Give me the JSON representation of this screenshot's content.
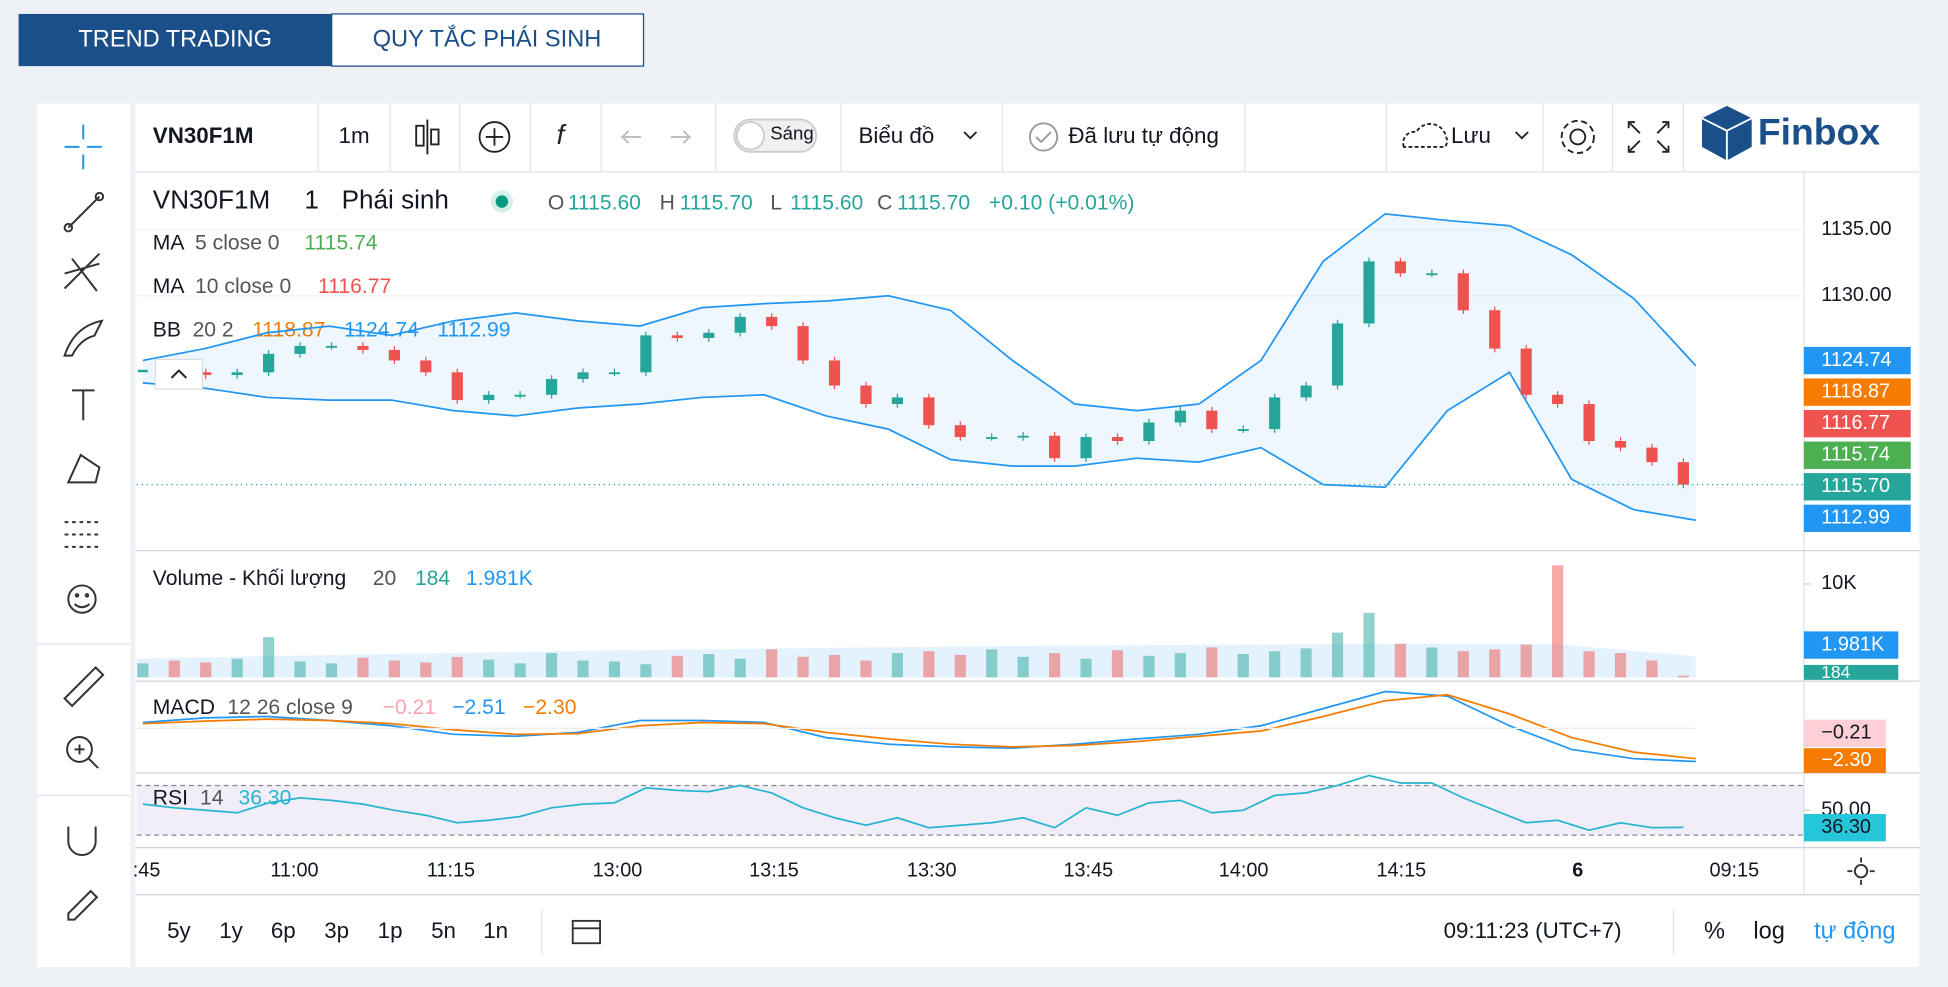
{
  "tabs": [
    "TREND TRADING",
    "QUY TẮC PHÁI SINH"
  ],
  "toolbar": {
    "symbol": "VN30F1M",
    "interval": "1m",
    "theme": "Sáng",
    "chart_menu": "Biểu đồ",
    "autosave": "Đã lưu tự động",
    "save": "Lưu",
    "brand": "Finbox"
  },
  "legend": {
    "symbol": "VN30F1M",
    "interval": "1",
    "exchange": "Phái sinh",
    "ohlc": [
      {
        "key": "O",
        "value": "1115.60"
      },
      {
        "key": "H",
        "value": "1115.70"
      },
      {
        "key": "L",
        "value": "1115.60"
      },
      {
        "key": "C",
        "value": "1115.70"
      }
    ],
    "change": "+0.10 (+0.01%)",
    "indicators": [
      {
        "name": "MA",
        "params": "5 close 0",
        "values": [
          "1115.74"
        ]
      },
      {
        "name": "MA",
        "params": "10 close 0",
        "values": [
          "1116.77"
        ]
      },
      {
        "name": "BB",
        "params": "20 2",
        "values": [
          "1118.87",
          "1124.74",
          "1112.99"
        ]
      }
    ]
  },
  "price_labels": [
    "1124.74",
    "1118.87",
    "1116.77",
    "1115.74",
    "1115.70",
    "1112.99"
  ],
  "volume_legend": {
    "name": "Volume - Khối lượng",
    "params": "20",
    "values": [
      "184",
      "1.981K"
    ]
  },
  "volume_labels": [
    "1.981K",
    "184"
  ],
  "macd_legend": {
    "name": "MACD",
    "params": "12 26 close 9",
    "values": [
      "−0.21",
      "−2.51",
      "−2.30"
    ]
  },
  "macd_labels": [
    "−0.21",
    "−2.30"
  ],
  "rsi_legend": {
    "name": "RSI",
    "params": "14",
    "values": [
      "36.30"
    ]
  },
  "rsi_labels": [
    "36.30"
  ],
  "time_labels": [
    ":45",
    "11:00",
    "11:15",
    "13:00",
    "13:15",
    "13:30",
    "13:45",
    "14:00",
    "14:15",
    "6",
    "09:15"
  ],
  "bottom": {
    "ranges": [
      "5y",
      "1y",
      "6p",
      "3p",
      "1p",
      "5n",
      "1n"
    ],
    "clock": "09:11:23 (UTC+7)",
    "percent": "%",
    "log": "log",
    "auto": "tự động"
  },
  "chart_data": {
    "type": "candlestick",
    "closes": [
      1124.3,
      1124.2,
      1124.0,
      1124.2,
      1125.6,
      1126.2,
      1126.2,
      1125.9,
      1125.1,
      1124.2,
      1122.1,
      1122.5,
      1122.5,
      1123.7,
      1124.2,
      1124.2,
      1127.0,
      1126.8,
      1127.2,
      1128.4,
      1127.7,
      1125.1,
      1123.2,
      1121.8,
      1122.3,
      1120.2,
      1119.3,
      1119.3,
      1119.4,
      1117.7,
      1119.3,
      1119.0,
      1120.4,
      1121.3,
      1119.9,
      1119.9,
      1122.3,
      1123.2,
      1127.9,
      1132.6,
      1131.7,
      1131.7,
      1128.9,
      1126.0,
      1122.5,
      1121.8,
      1119.0,
      1118.5,
      1117.4,
      1115.7
    ],
    "bb_upper": [
      1125.1,
      1126.0,
      1127.2,
      1127.7,
      1127.0,
      1128.1,
      1128.7,
      1128.1,
      1127.7,
      1129.1,
      1129.4,
      1129.6,
      1130.0,
      1128.9,
      1125.1,
      1121.8,
      1121.3,
      1121.8,
      1125.1,
      1132.6,
      1136.2,
      1135.7,
      1135.3,
      1133.1,
      1129.8,
      1124.7
    ],
    "bb_lower": [
      1123.4,
      1123.0,
      1122.3,
      1122.1,
      1122.1,
      1121.3,
      1120.9,
      1121.5,
      1121.8,
      1122.3,
      1122.5,
      1120.9,
      1119.9,
      1117.6,
      1117.1,
      1117.1,
      1117.7,
      1117.4,
      1118.5,
      1115.7,
      1115.5,
      1121.3,
      1124.2,
      1116.1,
      1113.8,
      1113.0
    ],
    "ylim": [
      1110.7,
      1139.2
    ],
    "yticks": [
      {
        "value": 1135,
        "label": "1135.00"
      },
      {
        "value": 1130,
        "label": "1130.00"
      }
    ],
    "volume": {
      "values": [
        1500,
        1800,
        1600,
        2000,
        4300,
        1700,
        1500,
        2100,
        1800,
        1600,
        2200,
        1900,
        1500,
        2600,
        1800,
        1700,
        1400,
        2300,
        2500,
        2000,
        3000,
        2200,
        2400,
        1800,
        2600,
        2800,
        2400,
        3000,
        2200,
        2600,
        2000,
        2900,
        2300,
        2600,
        3200,
        2500,
        2800,
        3100,
        4800,
        6900,
        3600,
        3200,
        2800,
        3000,
        3500,
        12000,
        2800,
        2600,
        1800,
        184
      ],
      "ylim": [
        0,
        13300
      ],
      "yticks": [
        {
          "value": 10000,
          "label": "10K"
        }
      ]
    },
    "macd": {
      "macd": [
        0.45,
        0.8,
        0.9,
        0.6,
        0.2,
        -0.45,
        -0.6,
        -0.3,
        0.6,
        0.6,
        0.45,
        -0.7,
        -1.2,
        -1.4,
        -1.5,
        -1.2,
        -0.8,
        -0.45,
        0.2,
        1.5,
        2.8,
        2.45,
        0.2,
        -1.6,
        -2.3,
        -2.51
      ],
      "signal": [
        0.36,
        0.55,
        0.7,
        0.6,
        0.36,
        -0.1,
        -0.45,
        -0.4,
        0.2,
        0.45,
        0.36,
        -0.3,
        -0.8,
        -1.2,
        -1.4,
        -1.3,
        -1.0,
        -0.6,
        -0.2,
        0.9,
        2.1,
        2.55,
        1.1,
        -0.7,
        -1.8,
        -2.3
      ],
      "ylim": [
        -3.2,
        3.4
      ]
    },
    "rsi": {
      "values": [
        55,
        52,
        50,
        48,
        56,
        60,
        58,
        55,
        50,
        46,
        40,
        42,
        45,
        52,
        55,
        56,
        68,
        66,
        65,
        70,
        64,
        52,
        44,
        38,
        44,
        36,
        38,
        40,
        44,
        36,
        52,
        46,
        56,
        58,
        48,
        50,
        62,
        64,
        70,
        78,
        72,
        72,
        60,
        50,
        40,
        42,
        34,
        40,
        36,
        36.3
      ],
      "ylim": [
        20,
        80
      ],
      "yticks": [
        {
          "value": 50,
          "label": "50.00"
        }
      ]
    }
  }
}
